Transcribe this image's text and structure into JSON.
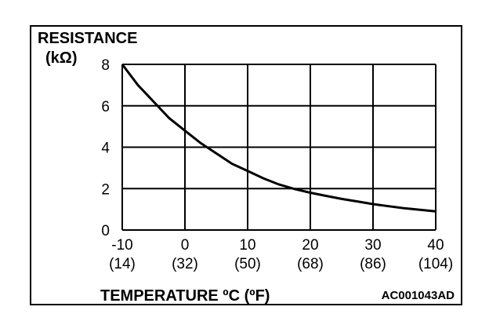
{
  "chart_data": {
    "type": "line",
    "title": "RESISTANCE",
    "ylabel": "(kΩ)",
    "xlabel": "TEMPERATURE ºC (ºF)",
    "figure_code": "AC001043AD",
    "xlim": [
      -10,
      40
    ],
    "ylim": [
      0,
      8
    ],
    "x_ticks": [
      -10,
      0,
      10,
      20,
      30,
      40
    ],
    "x_ticks_secondary": [
      "(14)",
      "(32)",
      "(50)",
      "(68)",
      "(86)",
      "(104)"
    ],
    "y_ticks": [
      0,
      2,
      4,
      6,
      8
    ],
    "grid": true,
    "series": [
      {
        "x": [
          -10,
          -7.5,
          -5,
          -2.5,
          0,
          2.5,
          5,
          7.5,
          10,
          12.5,
          15,
          17.5,
          20,
          22.5,
          25,
          27.5,
          30,
          32.5,
          35,
          37.5,
          40
        ],
        "y": [
          8.0,
          7.0,
          6.2,
          5.4,
          4.8,
          4.2,
          3.7,
          3.2,
          2.85,
          2.5,
          2.2,
          1.98,
          1.8,
          1.65,
          1.5,
          1.38,
          1.25,
          1.15,
          1.05,
          0.98,
          0.9
        ]
      }
    ]
  }
}
